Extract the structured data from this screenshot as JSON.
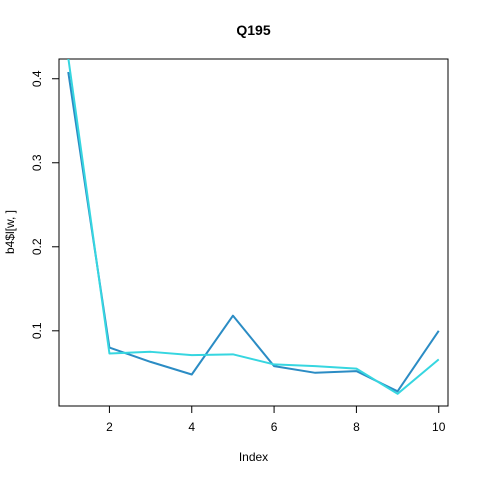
{
  "chart_data": {
    "type": "line",
    "title": "Q195",
    "xlabel": "Index",
    "ylabel": "b4$l[w, ]",
    "x": [
      1,
      2,
      3,
      4,
      5,
      6,
      7,
      8,
      9,
      10
    ],
    "xlim": [
      0.775,
      10.225
    ],
    "ylim": [
      0.0105,
      0.4235
    ],
    "x_ticks": [
      2,
      4,
      6,
      8,
      10
    ],
    "y_ticks": [
      0.1,
      0.2,
      0.3,
      0.4
    ],
    "x_tick_labels": [
      "2",
      "4",
      "6",
      "8",
      "10"
    ],
    "y_tick_labels": [
      "0.1",
      "0.2",
      "0.3",
      "0.4"
    ],
    "grid": false,
    "series": [
      {
        "color": "#2b8cc4",
        "values": [
          0.408,
          0.08,
          0.063,
          0.048,
          0.118,
          0.058,
          0.05,
          0.052,
          0.028,
          0.1
        ]
      },
      {
        "color": "#36d6e0",
        "values": [
          0.425,
          0.073,
          0.075,
          0.071,
          0.072,
          0.06,
          0.058,
          0.055,
          0.025,
          0.066
        ]
      }
    ]
  }
}
